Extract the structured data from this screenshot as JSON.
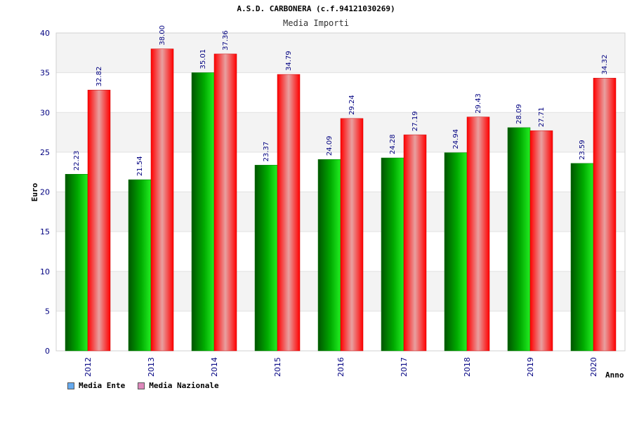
{
  "chart_data": {
    "type": "bar",
    "title": "A.S.D. CARBONERA (c.f.94121030269)",
    "subtitle": "Media Importi",
    "xlabel": "Anno",
    "ylabel": "Euro",
    "ylim": [
      0,
      40
    ],
    "yticks": [
      0,
      5,
      10,
      15,
      20,
      25,
      30,
      35,
      40
    ],
    "categories": [
      "2012",
      "2013",
      "2014",
      "2015",
      "2016",
      "2017",
      "2018",
      "2019",
      "2020"
    ],
    "series": [
      {
        "name": "Media Ente",
        "values": [
          22.23,
          21.54,
          35.01,
          23.37,
          24.09,
          24.28,
          24.94,
          28.09,
          23.59
        ],
        "labels": [
          "22.23",
          "21.54",
          "35.01",
          "23.37",
          "24.09",
          "24.28",
          "24.94",
          "28.09",
          "23.59"
        ]
      },
      {
        "name": "Media Nazionale",
        "values": [
          32.82,
          38.0,
          37.36,
          34.79,
          29.24,
          27.19,
          29.43,
          27.71,
          34.32
        ],
        "labels": [
          "32.82",
          "38.00",
          "37.36",
          "34.79",
          "29.24",
          "27.19",
          "29.43",
          "27.71",
          "34.32"
        ]
      }
    ],
    "grid": true,
    "legend_position": "bottom-left",
    "colors": {
      "series1": "#00cc00",
      "series2": "#ff2222",
      "legend1": "#66aaee",
      "legend2": "#dd88bb"
    }
  }
}
